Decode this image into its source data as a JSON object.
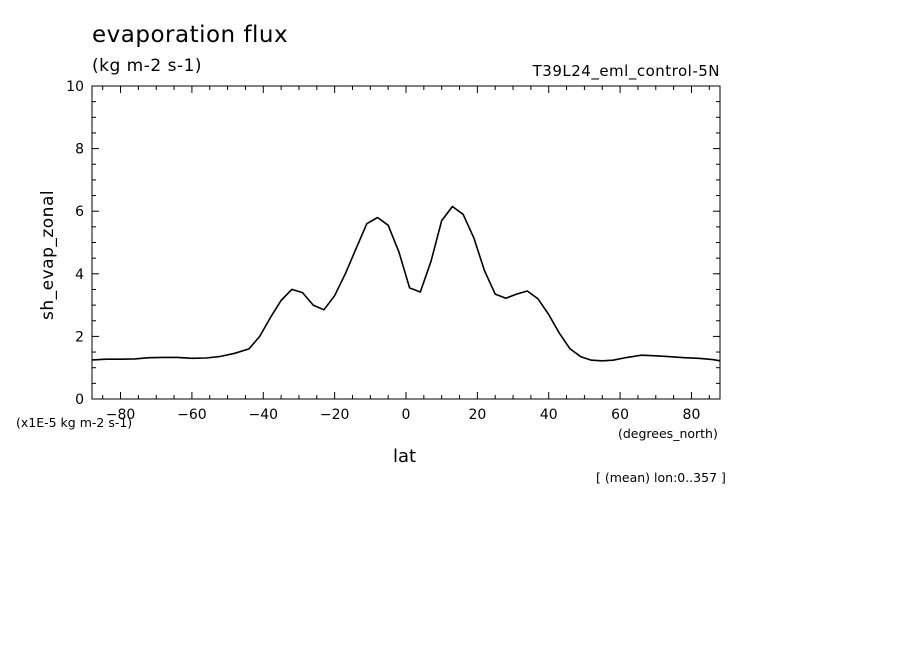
{
  "header": {
    "title": "evaporation flux",
    "units": "(kg m-2 s-1)",
    "run": "T39L24_eml_control-5N",
    "scale_note": "(x1E-5 kg m-2 s-1)",
    "x_units": "(degrees_north)",
    "averaging_note": "[ (mean) lon:0..357 ]"
  },
  "chart_data": {
    "type": "line",
    "title": "evaporation flux",
    "xlabel": "lat",
    "ylabel": "sh_evap_zonal",
    "xlim": [
      -88,
      88
    ],
    "ylim": [
      0,
      10
    ],
    "xticks": [
      -80,
      -60,
      -40,
      -20,
      0,
      20,
      40,
      60,
      80
    ],
    "yticks": [
      0,
      2,
      4,
      6,
      8,
      10
    ],
    "grid": false,
    "series": [
      {
        "x": [
          -88,
          -84,
          -80,
          -76,
          -72,
          -68,
          -64,
          -60,
          -56,
          -52,
          -48,
          -44,
          -41,
          -38,
          -35,
          -32,
          -29,
          -26,
          -23,
          -20,
          -17,
          -14,
          -11,
          -8,
          -5,
          -2,
          1,
          4,
          7,
          10,
          13,
          16,
          19,
          22,
          25,
          28,
          31,
          34,
          37,
          40,
          43,
          46,
          49,
          52,
          55,
          58,
          62,
          66,
          70,
          74,
          78,
          82,
          86,
          88
        ],
        "y": [
          1.25,
          1.27,
          1.27,
          1.28,
          1.32,
          1.33,
          1.33,
          1.3,
          1.31,
          1.36,
          1.46,
          1.6,
          2.0,
          2.6,
          3.15,
          3.5,
          3.4,
          3.0,
          2.85,
          3.3,
          4.0,
          4.8,
          5.6,
          5.8,
          5.55,
          4.7,
          3.55,
          3.42,
          4.4,
          5.7,
          6.15,
          5.9,
          5.15,
          4.1,
          3.35,
          3.22,
          3.35,
          3.45,
          3.2,
          2.7,
          2.1,
          1.6,
          1.35,
          1.24,
          1.22,
          1.24,
          1.33,
          1.4,
          1.38,
          1.35,
          1.32,
          1.3,
          1.26,
          1.22
        ]
      }
    ]
  }
}
